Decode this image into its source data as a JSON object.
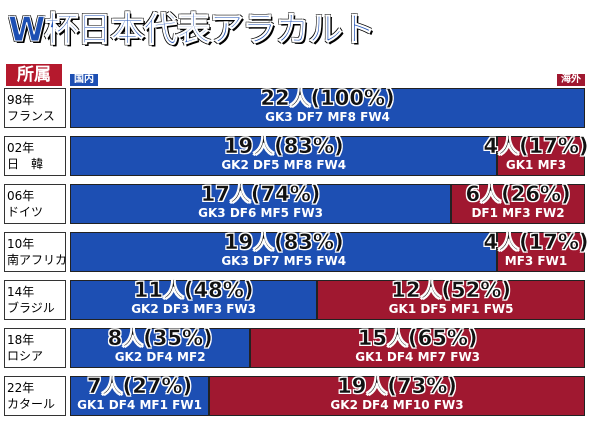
{
  "chart_data": {
    "type": "bar",
    "title": "W杯日本代表アラカルト",
    "legend_title": "所属",
    "orientation": "horizontal",
    "stacked": true,
    "xlim": [
      0,
      100
    ],
    "categories": [
      "98年\nフランス",
      "02年\n日　韓",
      "06年\nドイツ",
      "10年\n南アフリカ",
      "14年\nブラジル",
      "18年\nロシア",
      "22年\nカタール"
    ],
    "series": [
      {
        "name": "国内",
        "color": "#1d4fb3",
        "values": [
          100,
          83,
          74,
          83,
          48,
          35,
          27
        ],
        "value_labels": [
          "22人(100%)",
          "19人(83%)",
          "17人(74%)",
          "19人(83%)",
          "11人(48%)",
          "8人(35%)",
          "7人(27%)"
        ],
        "details": [
          "GK3 DF7 MF8 FW4",
          "GK2 DF5 MF8 FW4",
          "GK3 DF6 MF5 FW3",
          "GK3 DF7 MF5 FW4",
          "GK2 DF3 MF3 FW3",
          "GK2 DF4 MF2",
          "GK1 DF4 MF1 FW1"
        ]
      },
      {
        "name": "海外",
        "color": "#a01830",
        "values": [
          null,
          17,
          26,
          17,
          52,
          65,
          73
        ],
        "value_labels": [
          null,
          "4人(17%)",
          "6人(26%)",
          "4人(17%)",
          "12人(52%)",
          "15人(65%)",
          "19人(73%)"
        ],
        "details": [
          null,
          "GK1 MF3",
          "DF1 MF3 FW2",
          "MF3 FW1",
          "GK1 DF5 MF1 FW5",
          "GK1 DF4 MF7 FW3",
          "GK2 DF4 MF10 FW3"
        ]
      }
    ]
  }
}
